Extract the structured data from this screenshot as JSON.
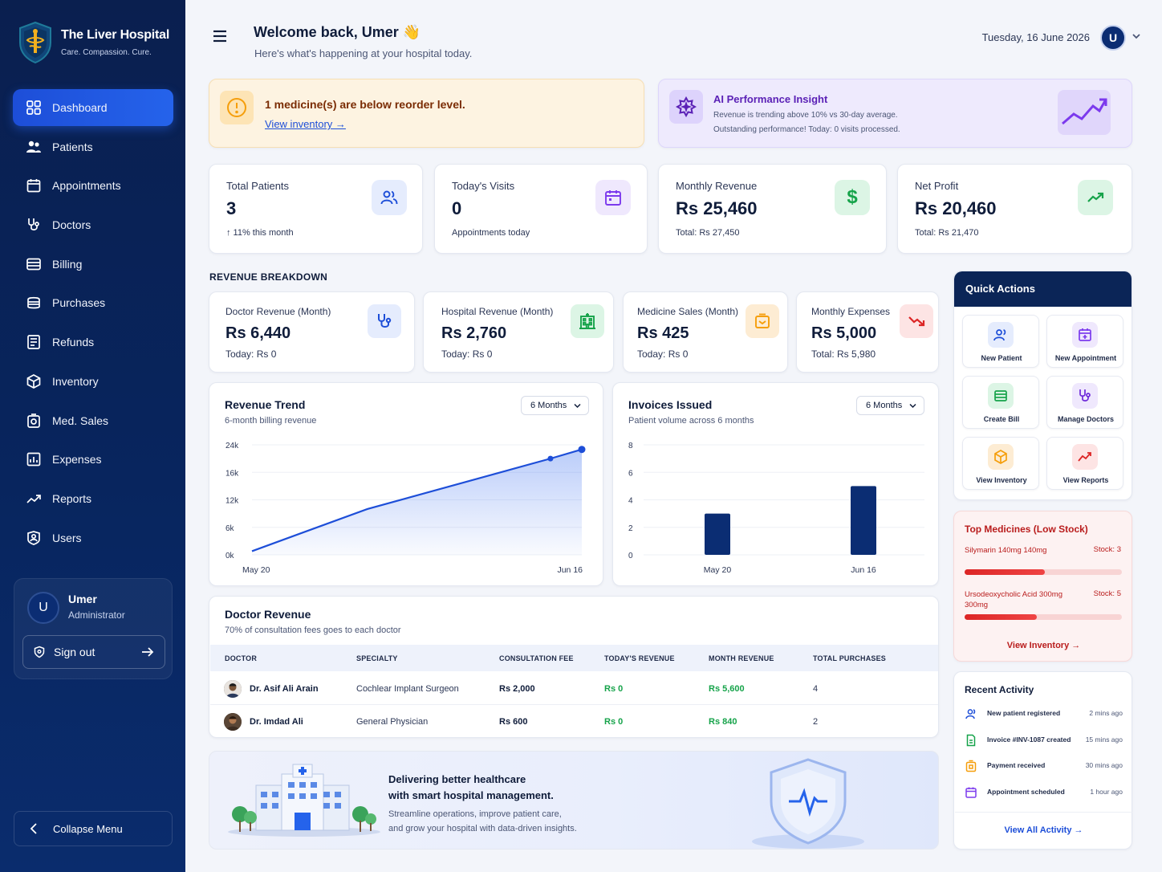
{
  "brand": {
    "title": "The Liver Hospital",
    "tagline": "Care. Compassion. Cure."
  },
  "sidebar": {
    "items": [
      {
        "label": "Dashboard",
        "icon": "dashboard-icon",
        "active": true
      },
      {
        "label": "Patients",
        "icon": "patients-icon"
      },
      {
        "label": "Appointments",
        "icon": "calendar-icon"
      },
      {
        "label": "Doctors",
        "icon": "stethoscope-icon"
      },
      {
        "label": "Billing",
        "icon": "billing-icon"
      },
      {
        "label": "Purchases",
        "icon": "purchases-icon"
      },
      {
        "label": "Refunds",
        "icon": "refunds-icon"
      },
      {
        "label": "Inventory",
        "icon": "box-icon"
      },
      {
        "label": "Med. Sales",
        "icon": "med-sales-icon"
      },
      {
        "label": "Expenses",
        "icon": "expenses-icon"
      },
      {
        "label": "Reports",
        "icon": "trend-icon"
      },
      {
        "label": "Users",
        "icon": "users-icon"
      }
    ],
    "user": {
      "initial": "U",
      "name": "Umer",
      "role": "Administrator"
    },
    "signout": "Sign out",
    "collapse": "Collapse Menu"
  },
  "header": {
    "welcome": "Welcome back, Umer 👋",
    "subtitle": "Here's what's happening at your hospital today.",
    "date": "Tuesday, 16 June 2026",
    "avatar_initial": "U"
  },
  "alert": {
    "title": "1 medicine(s) are below reorder level.",
    "link": "View inventory →"
  },
  "insight": {
    "title": "AI Performance Insight",
    "line1": "Revenue is trending above 10% vs 30-day average.",
    "line2": "Outstanding performance! Today: 0 visits processed."
  },
  "stats": [
    {
      "label": "Total Patients",
      "value": "3",
      "sub": "↑ 11% this month"
    },
    {
      "label": "Today's Visits",
      "value": "0",
      "sub": "Appointments today"
    },
    {
      "label": "Monthly Revenue",
      "value": "Rs 25,460",
      "sub": "Total: Rs 27,450"
    },
    {
      "label": "Net Profit",
      "value": "Rs 20,460",
      "sub": "Total: Rs 21,470"
    }
  ],
  "revenue_breakdown": {
    "title": "REVENUE BREAKDOWN",
    "cards": [
      {
        "label": "Doctor Revenue (Month)",
        "value": "Rs 6,440",
        "sub": "Today: Rs 0"
      },
      {
        "label": "Hospital Revenue (Month)",
        "value": "Rs 2,760",
        "sub": "Today: Rs 0"
      },
      {
        "label": "Medicine Sales (Month)",
        "value": "Rs 425",
        "sub": "Today: Rs 0"
      },
      {
        "label": "Monthly Expenses",
        "value": "Rs 5,000",
        "sub": "Total: Rs 5,980"
      }
    ]
  },
  "chart_data": [
    {
      "type": "area",
      "title": "Revenue Trend",
      "subtitle": "6-month billing revenue",
      "dropdown": "6 Months",
      "x": [
        "May 20",
        "Jun 16"
      ],
      "y_ticks": [
        "24k",
        "16k",
        "12k",
        "6k",
        "0k"
      ],
      "ylim": [
        0,
        24000
      ],
      "points": [
        {
          "x": 0,
          "y": 800
        },
        {
          "x": 0.35,
          "y": 10000
        },
        {
          "x": 0.905,
          "y": 21000
        },
        {
          "x": 1,
          "y": 23000
        }
      ],
      "color": "#1d4ed8"
    },
    {
      "type": "bar",
      "title": "Invoices Issued",
      "subtitle": "Patient volume across 6 months",
      "dropdown": "6 Months",
      "categories": [
        "May 20",
        "Jun 16"
      ],
      "values": [
        3,
        5
      ],
      "y_ticks": [
        "8",
        "6",
        "4",
        "2",
        "0"
      ],
      "ylim": [
        0,
        8
      ],
      "color": "#0b2d73"
    }
  ],
  "doctor_table": {
    "title": "Doctor Revenue",
    "subtitle": "70% of consultation fees goes to each doctor",
    "columns": [
      "DOCTOR",
      "SPECIALTY",
      "CONSULTATION FEE",
      "TODAY'S REVENUE",
      "MONTH REVENUE",
      "TOTAL PURCHASES"
    ],
    "rows": [
      {
        "doctor": "Dr. Asif Ali Arain",
        "specialty": "Cochlear Implant Surgeon",
        "fee": "Rs 2,000",
        "today": "Rs 0",
        "month": "Rs 5,600",
        "purchases": "4"
      },
      {
        "doctor": "Dr. Imdad Ali",
        "specialty": "General Physician",
        "fee": "Rs 600",
        "today": "Rs 0",
        "month": "Rs 840",
        "purchases": "2"
      }
    ],
    "more": "···"
  },
  "banner": {
    "heading1": "Delivering better healthcare",
    "heading2": "with smart hospital management.",
    "para1": "Streamline operations, improve patient care,",
    "para2": "and grow your hospital with data-driven insights."
  },
  "quick_actions": {
    "title": "Quick Actions",
    "items": [
      {
        "label": "New Patient",
        "icon": "new-patient-icon"
      },
      {
        "label": "New Appointment",
        "icon": "new-appointment-icon"
      },
      {
        "label": "Create Bill",
        "icon": "create-bill-icon"
      },
      {
        "label": "Manage Doctors",
        "icon": "manage-doctors-icon"
      },
      {
        "label": "View Inventory",
        "icon": "view-inventory-icon"
      },
      {
        "label": "View Reports",
        "icon": "view-reports-icon"
      }
    ]
  },
  "low_stock": {
    "title": "Top Medicines (Low Stock)",
    "items": [
      {
        "name": "Silymarin 140mg 140mg",
        "stock": "Stock: 3",
        "level": 0.51
      },
      {
        "name": "Ursodeoxycholic Acid 300mg 300mg",
        "stock": "Stock: 5",
        "level": 0.46
      }
    ],
    "link": "View Inventory →"
  },
  "recent_activity": {
    "title": "Recent Activity",
    "items": [
      {
        "text": "New patient registered",
        "time": "2 mins ago",
        "icon": "user-icon"
      },
      {
        "text": "Invoice #INV-1087 created",
        "time": "15 mins ago",
        "icon": "invoice-icon"
      },
      {
        "text": "Payment received",
        "time": "30 mins ago",
        "icon": "payment-icon"
      },
      {
        "text": "Appointment scheduled",
        "time": "1 hour ago",
        "icon": "calendar-icon"
      }
    ],
    "link": "View All Activity →"
  }
}
